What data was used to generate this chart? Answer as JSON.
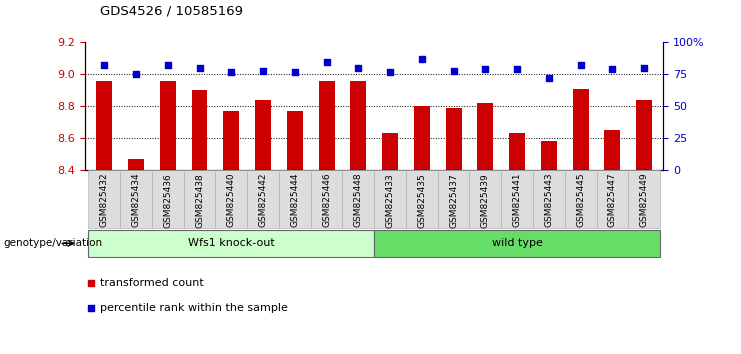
{
  "title": "GDS4526 / 10585169",
  "samples": [
    "GSM825432",
    "GSM825434",
    "GSM825436",
    "GSM825438",
    "GSM825440",
    "GSM825442",
    "GSM825444",
    "GSM825446",
    "GSM825448",
    "GSM825433",
    "GSM825435",
    "GSM825437",
    "GSM825439",
    "GSM825441",
    "GSM825443",
    "GSM825445",
    "GSM825447",
    "GSM825449"
  ],
  "bar_values": [
    8.96,
    8.47,
    8.96,
    8.9,
    8.77,
    8.84,
    8.77,
    8.96,
    8.96,
    8.63,
    8.8,
    8.79,
    8.82,
    8.63,
    8.58,
    8.91,
    8.65,
    8.84
  ],
  "dot_values": [
    82,
    75,
    82,
    80,
    77,
    78,
    77,
    85,
    80,
    77,
    87,
    78,
    79,
    79,
    72,
    82,
    79,
    80
  ],
  "bar_color": "#cc0000",
  "dot_color": "#0000cc",
  "ylim_left": [
    8.4,
    9.2
  ],
  "ylim_right": [
    0,
    100
  ],
  "yticks_left": [
    8.4,
    8.6,
    8.8,
    9.0,
    9.2
  ],
  "yticks_right": [
    0,
    25,
    50,
    75,
    100
  ],
  "ytick_labels_right": [
    "0",
    "25",
    "50",
    "75",
    "100%"
  ],
  "group1_label": "Wfs1 knock-out",
  "group2_label": "wild type",
  "group1_count": 9,
  "group2_count": 9,
  "group1_color": "#ccffcc",
  "group2_color": "#66dd66",
  "xlabel_left": "genotype/variation",
  "legend_bar": "transformed count",
  "legend_dot": "percentile rank within the sample",
  "grid_dotted_values": [
    8.6,
    8.8,
    9.0
  ],
  "bg_color": "#ffffff",
  "tick_label_color_left": "#cc0000",
  "tick_label_color_right": "#0000cc",
  "xticklabel_bg": "#dddddd"
}
